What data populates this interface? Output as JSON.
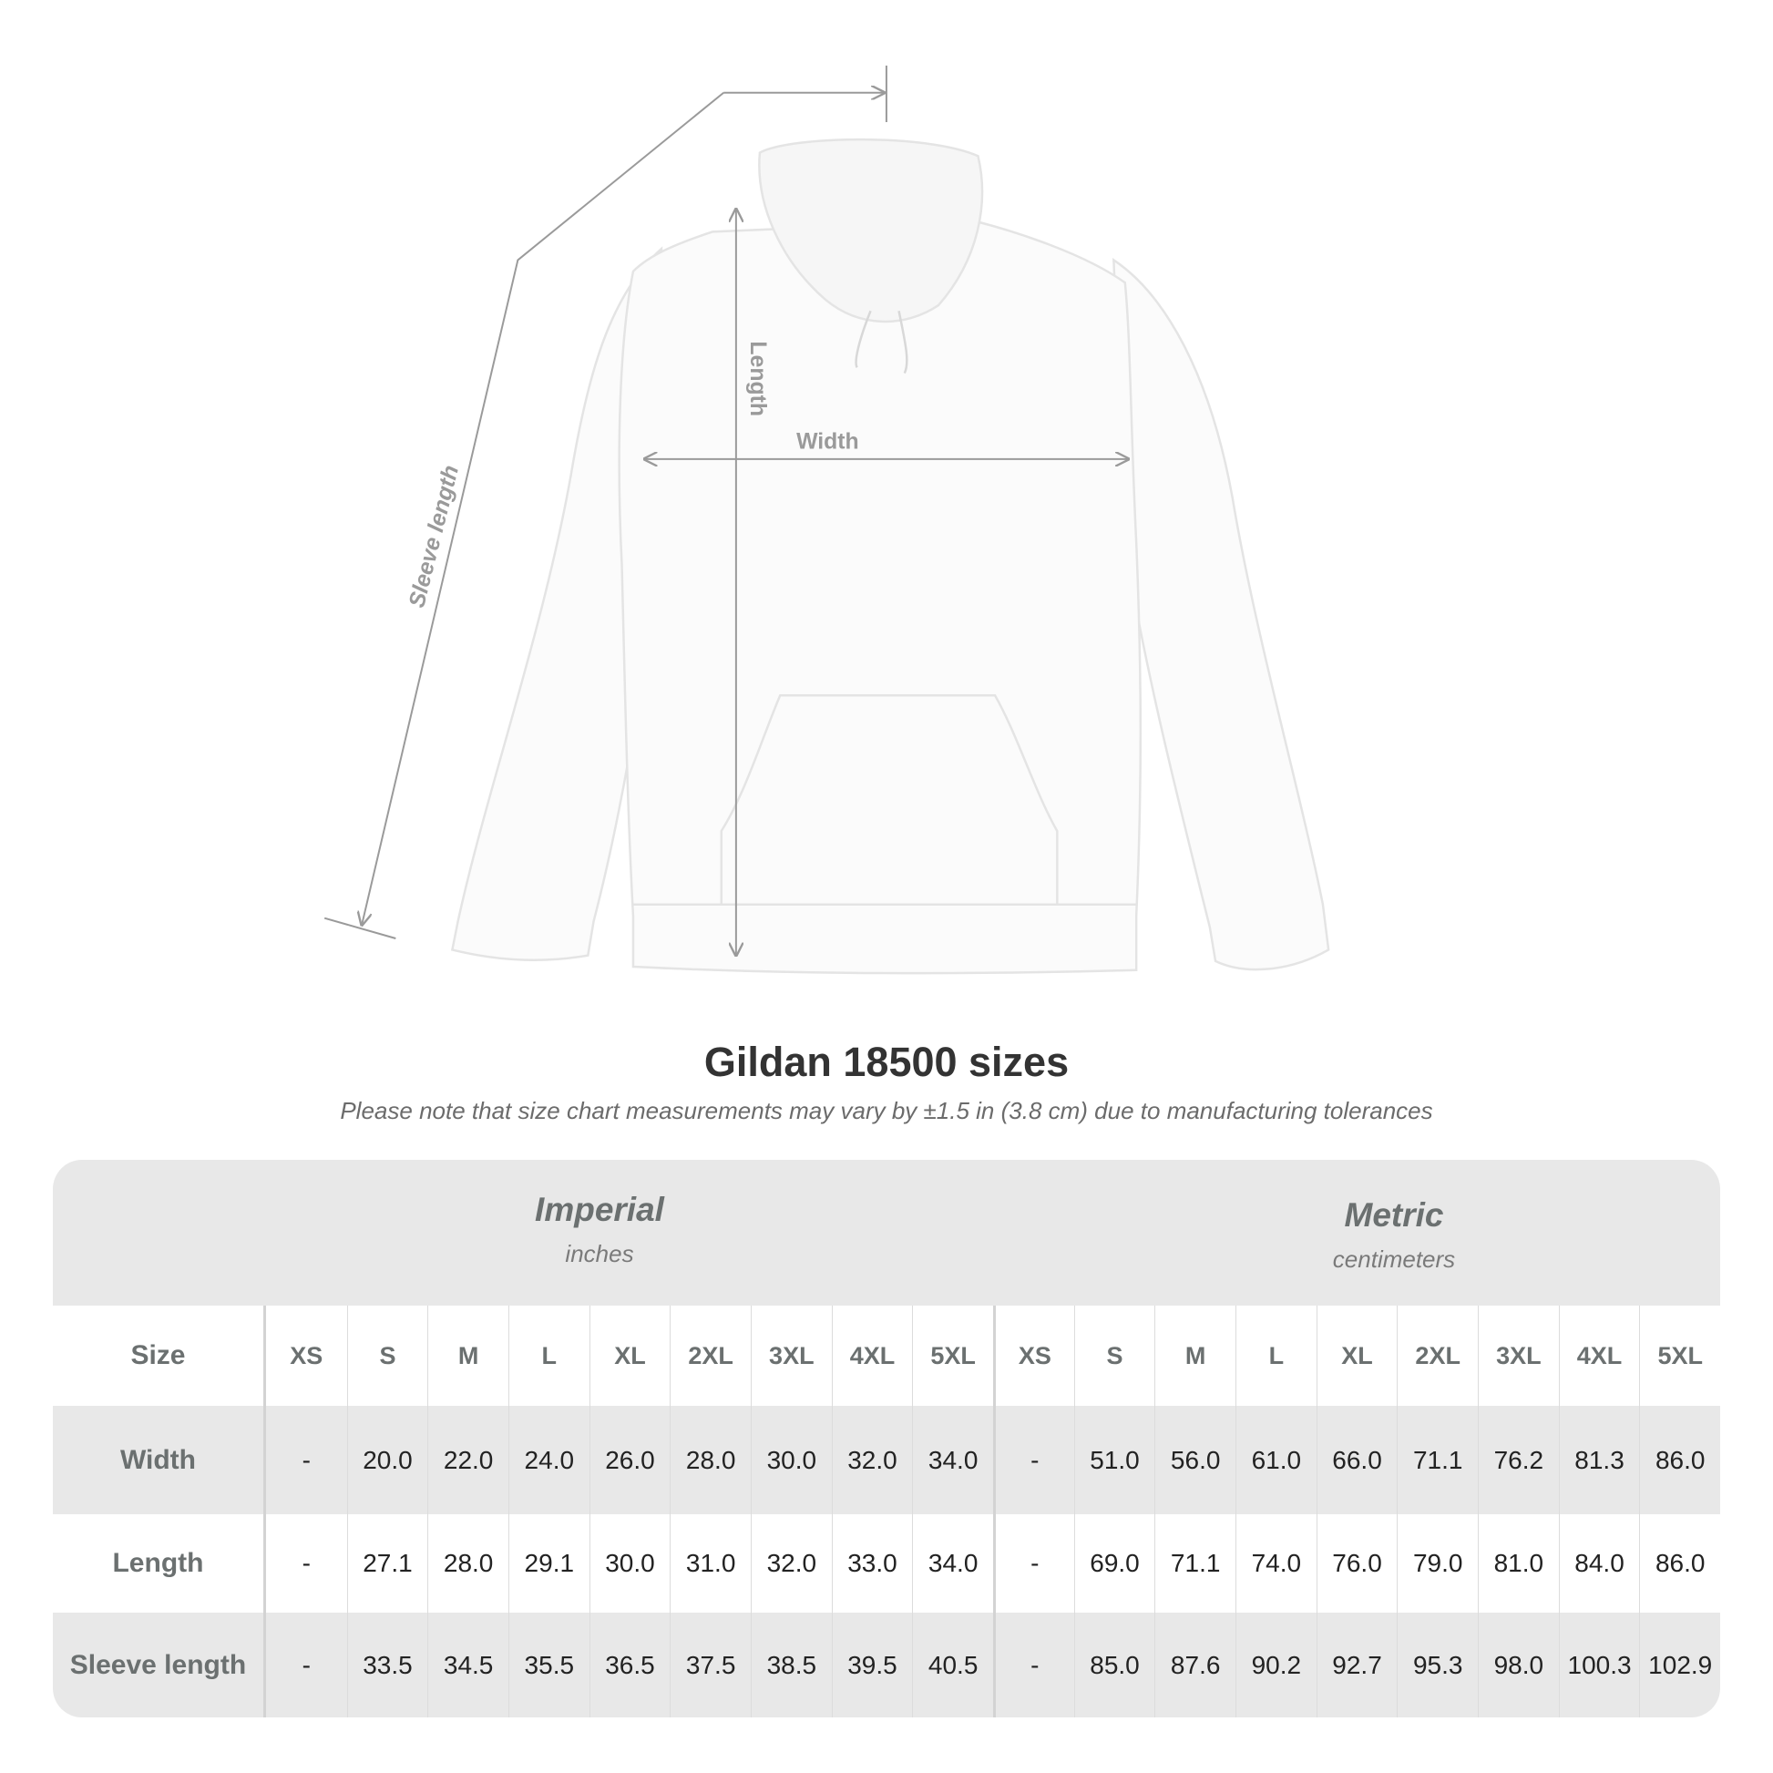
{
  "diagram": {
    "labels": {
      "sleeve": "Sleeve length",
      "length": "Length",
      "width": "Width"
    }
  },
  "title": "Gildan 18500 sizes",
  "note": "Please note that size chart measurements may vary by ±1.5 in (3.8 cm) due to manufacturing tolerances",
  "table": {
    "imperial": {
      "name": "Imperial",
      "unit": "inches"
    },
    "metric": {
      "name": "Metric",
      "unit": "centimeters"
    },
    "size_label": "Size",
    "sizes": [
      "XS",
      "S",
      "M",
      "L",
      "XL",
      "2XL",
      "3XL",
      "4XL",
      "5XL"
    ],
    "rows": [
      {
        "label": "Width",
        "imperial": [
          "-",
          "20.0",
          "22.0",
          "24.0",
          "26.0",
          "28.0",
          "30.0",
          "32.0",
          "34.0"
        ],
        "metric": [
          "-",
          "51.0",
          "56.0",
          "61.0",
          "66.0",
          "71.1",
          "76.2",
          "81.3",
          "86.0"
        ]
      },
      {
        "label": "Length",
        "imperial": [
          "-",
          "27.1",
          "28.0",
          "29.1",
          "30.0",
          "31.0",
          "32.0",
          "33.0",
          "34.0"
        ],
        "metric": [
          "-",
          "69.0",
          "71.1",
          "74.0",
          "76.0",
          "79.0",
          "81.0",
          "84.0",
          "86.0"
        ]
      },
      {
        "label": "Sleeve length",
        "imperial": [
          "-",
          "33.5",
          "34.5",
          "35.5",
          "36.5",
          "37.5",
          "38.5",
          "39.5",
          "40.5"
        ],
        "metric": [
          "-",
          "85.0",
          "87.6",
          "90.2",
          "92.7",
          "95.3",
          "98.0",
          "100.3",
          "102.9"
        ]
      }
    ]
  },
  "colors": {
    "band": "#e8e8e8",
    "header_text": "#6b7070",
    "measure_line": "#9a9a9a"
  }
}
